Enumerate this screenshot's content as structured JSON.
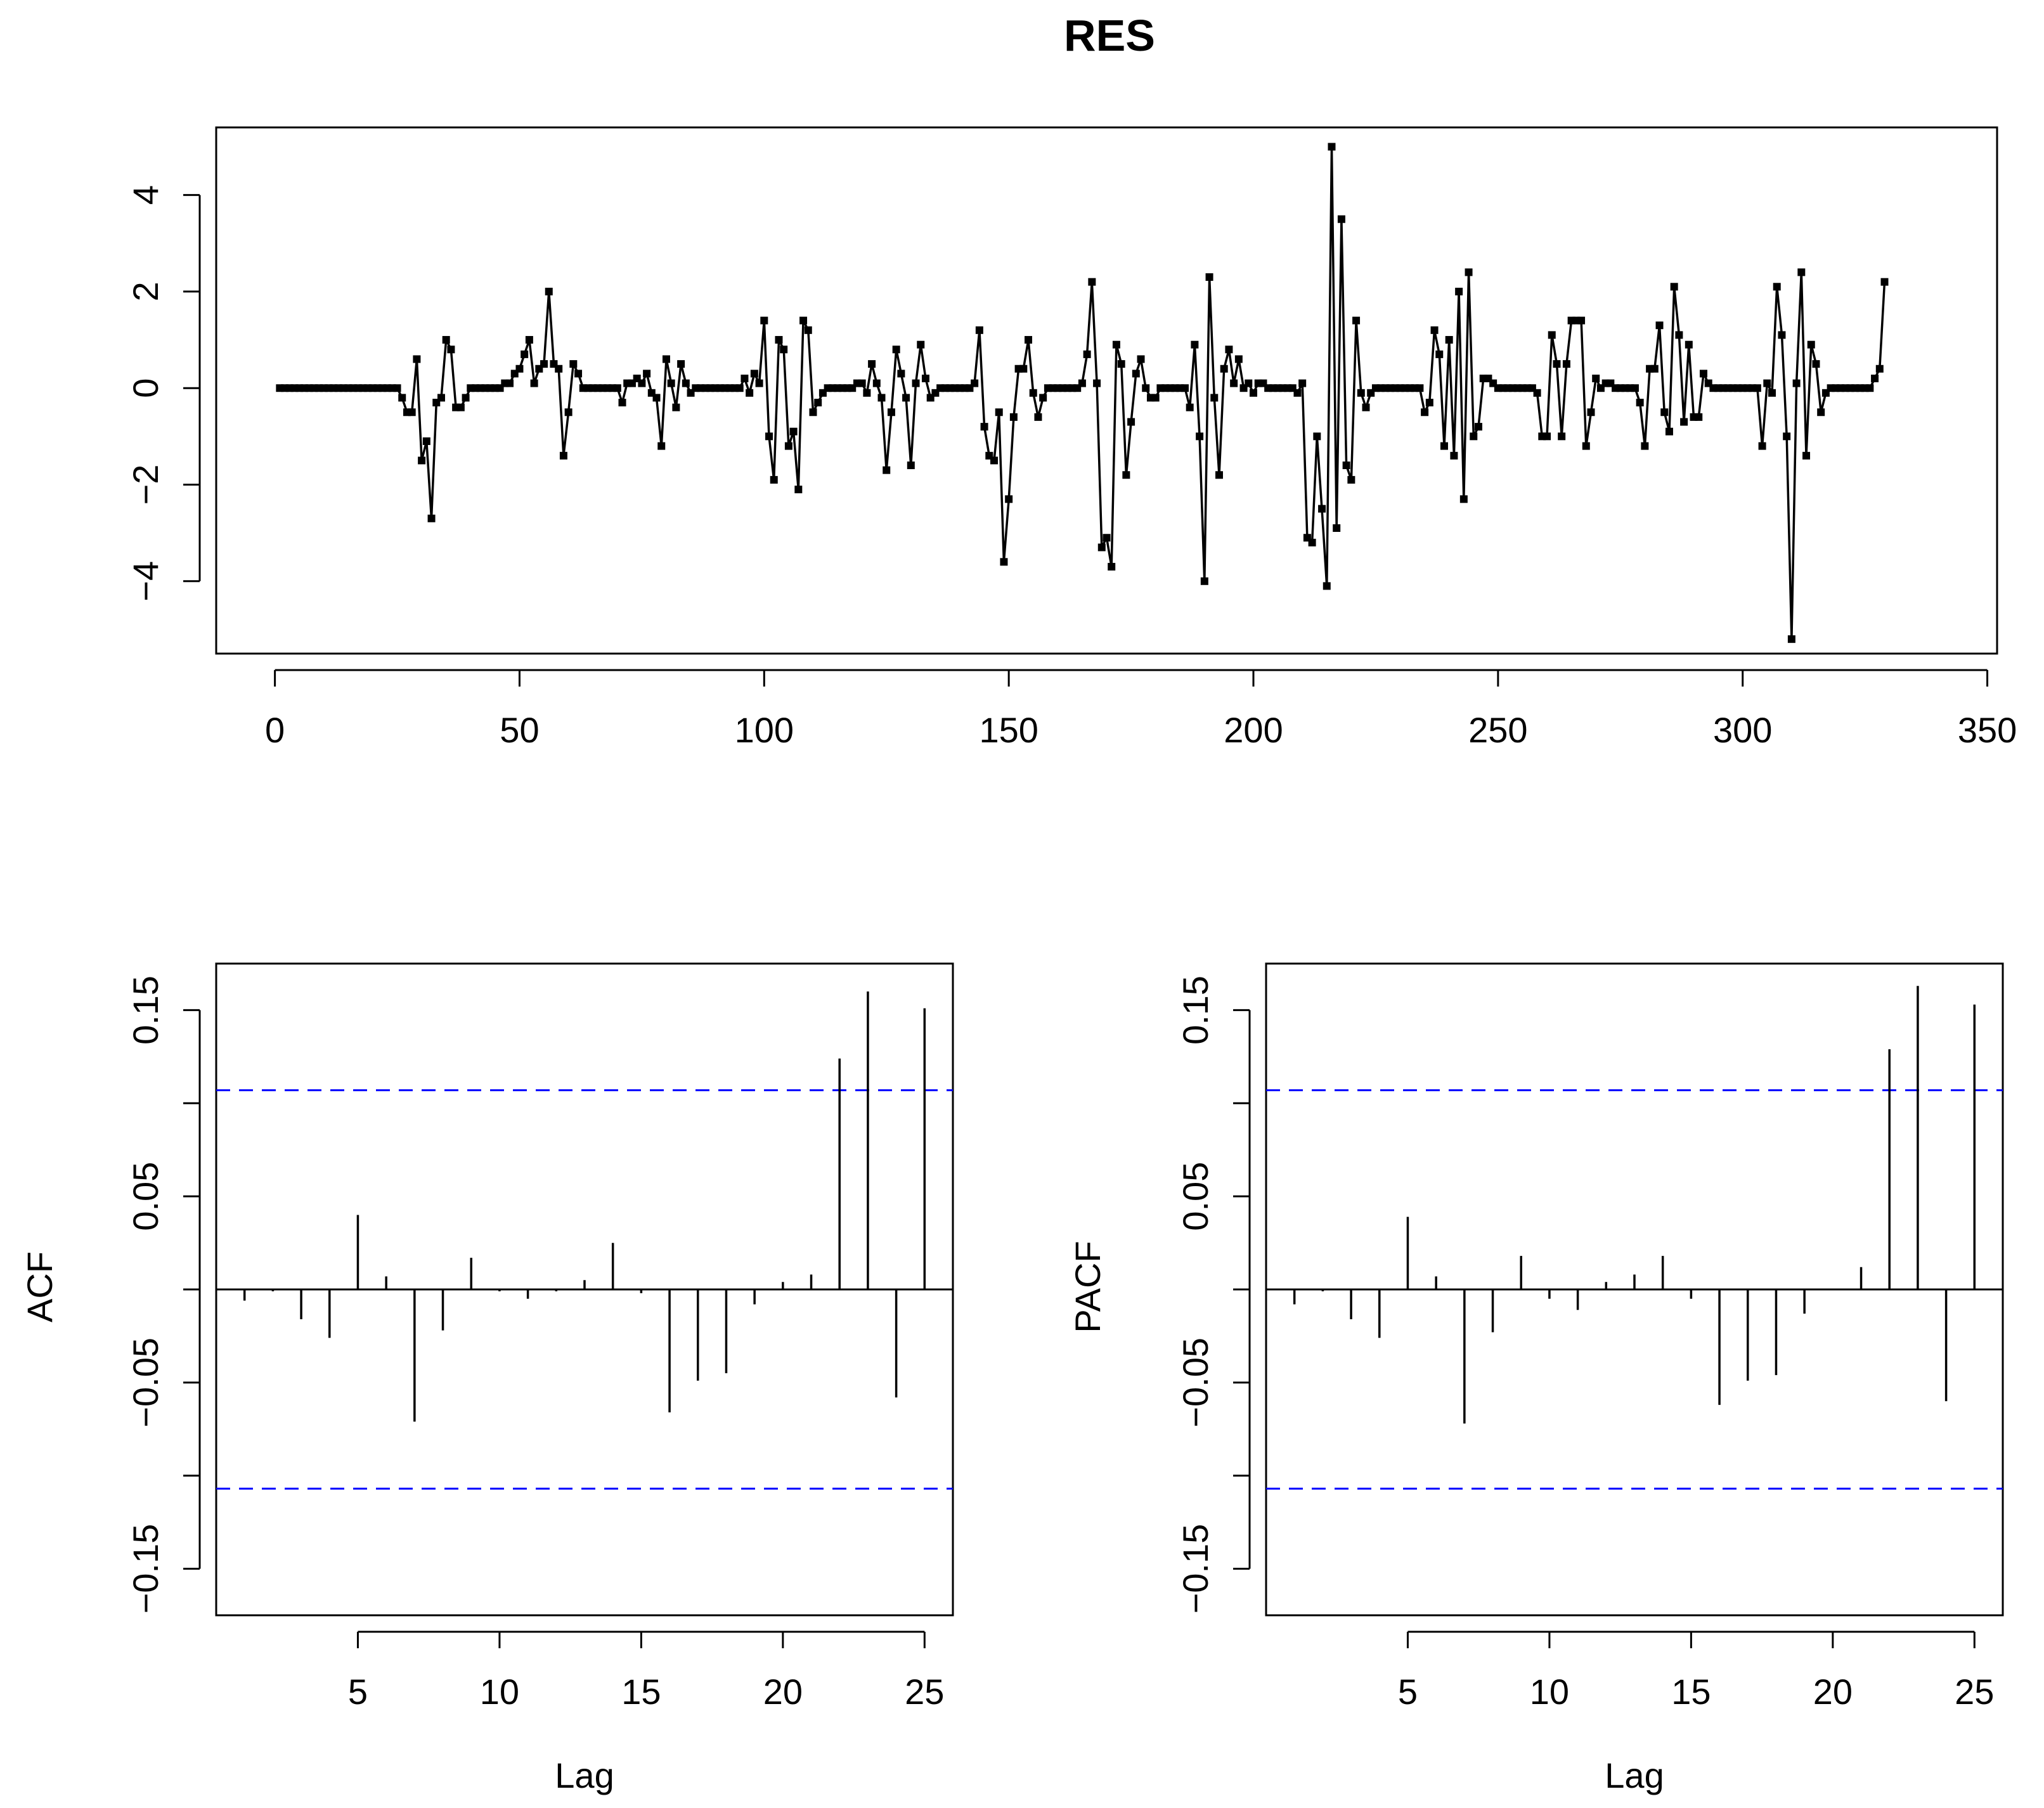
{
  "chart_data": [
    {
      "type": "line",
      "title": "RES",
      "xlabel": "",
      "ylabel": "",
      "xlim": [
        -12,
        352
      ],
      "ylim": [
        -5.5,
        5.4
      ],
      "x_ticks": [
        0,
        50,
        100,
        150,
        200,
        250,
        300,
        350
      ],
      "x_tick_labels": [
        "0",
        "50",
        "100",
        "150",
        "200",
        "250",
        "300",
        "350"
      ],
      "y_ticks": [
        -4,
        -2,
        0,
        2,
        4
      ],
      "y_tick_labels": [
        "−4",
        "−2",
        "0",
        "2",
        "4"
      ],
      "marker": "square",
      "series": [
        {
          "name": "RES",
          "values": [
            0,
            0,
            0,
            0,
            0,
            0,
            0,
            0,
            0,
            0,
            0,
            0,
            0,
            0,
            0,
            0,
            0,
            0,
            0,
            0,
            0,
            0,
            0,
            0,
            0,
            -0.2,
            -0.5,
            -0.5,
            0.6,
            -1.5,
            -1.1,
            -2.7,
            -0.3,
            -0.2,
            1.0,
            0.8,
            -0.4,
            -0.4,
            -0.2,
            0,
            0,
            0,
            0,
            0,
            0,
            0,
            0.1,
            0.1,
            0.3,
            0.4,
            0.7,
            1.0,
            0.1,
            0.4,
            0.5,
            2.0,
            0.5,
            0.4,
            -1.4,
            -0.5,
            0.5,
            0.3,
            0,
            0,
            0,
            0,
            0,
            0,
            0,
            0,
            -0.3,
            0.1,
            0.1,
            0.2,
            0.1,
            0.3,
            -0.1,
            -0.2,
            -1.2,
            0.6,
            0.1,
            -0.4,
            0.5,
            0.1,
            -0.1,
            0,
            0,
            0,
            0,
            0,
            0,
            0,
            0,
            0,
            0,
            0.2,
            -0.1,
            0.3,
            0.1,
            1.4,
            -1.0,
            -1.9,
            1.0,
            0.8,
            -1.2,
            -0.9,
            -2.1,
            1.4,
            1.2,
            -0.5,
            -0.3,
            -0.1,
            0,
            0,
            0,
            0,
            0,
            0,
            0.1,
            0.1,
            -0.1,
            0.5,
            0.1,
            -0.2,
            -1.7,
            -0.5,
            0.8,
            0.3,
            -0.2,
            -1.6,
            0.1,
            0.9,
            0.2,
            -0.2,
            -0.1,
            0,
            0,
            0,
            0,
            0,
            0,
            0,
            0.1,
            1.2,
            -0.8,
            -1.4,
            -1.5,
            -0.5,
            -3.6,
            -2.3,
            -0.6,
            0.4,
            0.4,
            1.0,
            -0.1,
            -0.6,
            -0.2,
            0,
            0,
            0,
            0,
            0,
            0,
            0,
            0.1,
            0.7,
            2.2,
            0.1,
            -3.3,
            -3.1,
            -3.7,
            0.9,
            0.5,
            -1.8,
            -0.7,
            0.3,
            0.6,
            0,
            -0.2,
            -0.2,
            0,
            0,
            0,
            0,
            0,
            0,
            -0.4,
            0.9,
            -1.0,
            -4.0,
            2.3,
            -0.2,
            -1.8,
            0.4,
            0.8,
            0.1,
            0.6,
            0,
            0.1,
            -0.1,
            0.1,
            0.1,
            0,
            0,
            0,
            0,
            0,
            0,
            -0.1,
            0.1,
            -3.1,
            -3.2,
            -1.0,
            -2.5,
            -4.1,
            5.0,
            -2.9,
            3.5,
            -1.6,
            -1.9,
            1.4,
            -0.1,
            -0.4,
            -0.1,
            0,
            0,
            0,
            0,
            0,
            0,
            0,
            0,
            0,
            0,
            -0.5,
            -0.3,
            1.2,
            0.7,
            -1.2,
            1.0,
            -1.4,
            2.0,
            -2.3,
            2.4,
            -1.0,
            -0.8,
            0.2,
            0.2,
            0.1,
            0,
            0,
            0,
            0,
            0,
            0,
            0,
            0,
            -0.1,
            -1.0,
            -1.0,
            1.1,
            0.5,
            -1.0,
            0.5,
            1.4,
            1.4,
            1.4,
            -1.2,
            -0.5,
            0.2,
            0,
            0.1,
            0.1,
            0,
            0,
            0,
            0,
            0,
            -0.3,
            -1.2,
            0.4,
            0.4,
            1.3,
            -0.5,
            -0.9,
            2.1,
            1.1,
            -0.7,
            0.9,
            -0.6,
            -0.6,
            0.3,
            0.1,
            0,
            0,
            0,
            0,
            0,
            0,
            0,
            0,
            0,
            0,
            -1.2,
            0.1,
            -0.1,
            2.1,
            1.1,
            -1.0,
            -5.2,
            0.1,
            2.4,
            -1.4,
            0.9,
            0.5,
            -0.5,
            -0.1,
            0,
            0,
            0,
            0,
            0,
            0,
            0,
            0,
            0,
            0.2,
            0.4,
            2.2
          ]
        }
      ]
    },
    {
      "type": "bar",
      "title": "",
      "xlabel": "Lag",
      "ylabel": "ACF",
      "xlim": [
        0,
        26
      ],
      "ylim": [
        -0.175,
        0.175
      ],
      "x": [
        1,
        2,
        3,
        4,
        5,
        6,
        7,
        8,
        9,
        10,
        11,
        12,
        13,
        14,
        15,
        16,
        17,
        18,
        19,
        20,
        21,
        22,
        23,
        24,
        25
      ],
      "values": [
        -0.006,
        -0.001,
        -0.016,
        -0.026,
        0.04,
        0.007,
        -0.071,
        -0.022,
        0.017,
        -0.001,
        -0.005,
        -0.001,
        0.005,
        0.025,
        -0.002,
        -0.066,
        -0.049,
        -0.045,
        -0.008,
        0.004,
        0.008,
        0.124,
        0.16,
        -0.058,
        0.151
      ],
      "conf_limit": 0.107,
      "x_ticks": [
        5,
        10,
        15,
        20,
        25
      ],
      "x_tick_labels": [
        "5",
        "10",
        "15",
        "20",
        "25"
      ],
      "y_ticks": [
        -0.15,
        -0.1,
        -0.05,
        0,
        0.05,
        0.1,
        0.15
      ],
      "y_tick_labels": [
        "−0.15",
        "",
        "−0.05",
        "",
        "0.05",
        "",
        "0.15"
      ],
      "colors": {
        "bars": "#000000",
        "conf": "#0000ff"
      }
    },
    {
      "type": "bar",
      "title": "",
      "xlabel": "Lag",
      "ylabel": "PACF",
      "xlim": [
        0,
        26
      ],
      "ylim": [
        -0.175,
        0.175
      ],
      "x": [
        1,
        2,
        3,
        4,
        5,
        6,
        7,
        8,
        9,
        10,
        11,
        12,
        13,
        14,
        15,
        16,
        17,
        18,
        19,
        20,
        21,
        22,
        23,
        24,
        25
      ],
      "values": [
        -0.008,
        -0.001,
        -0.016,
        -0.026,
        0.039,
        0.007,
        -0.072,
        -0.023,
        0.018,
        -0.005,
        -0.011,
        0.004,
        0.008,
        0.018,
        -0.005,
        -0.062,
        -0.049,
        -0.046,
        -0.013,
        0.0,
        0.012,
        0.129,
        0.163,
        -0.06,
        0.153
      ],
      "conf_limit": 0.107,
      "x_ticks": [
        5,
        10,
        15,
        20,
        25
      ],
      "x_tick_labels": [
        "5",
        "10",
        "15",
        "20",
        "25"
      ],
      "y_ticks": [
        -0.15,
        -0.1,
        -0.05,
        0,
        0.05,
        0.1,
        0.15
      ],
      "y_tick_labels": [
        "−0.15",
        "",
        "−0.05",
        "",
        "0.05",
        "",
        "0.15"
      ],
      "colors": {
        "bars": "#000000",
        "conf": "#0000ff"
      }
    }
  ]
}
